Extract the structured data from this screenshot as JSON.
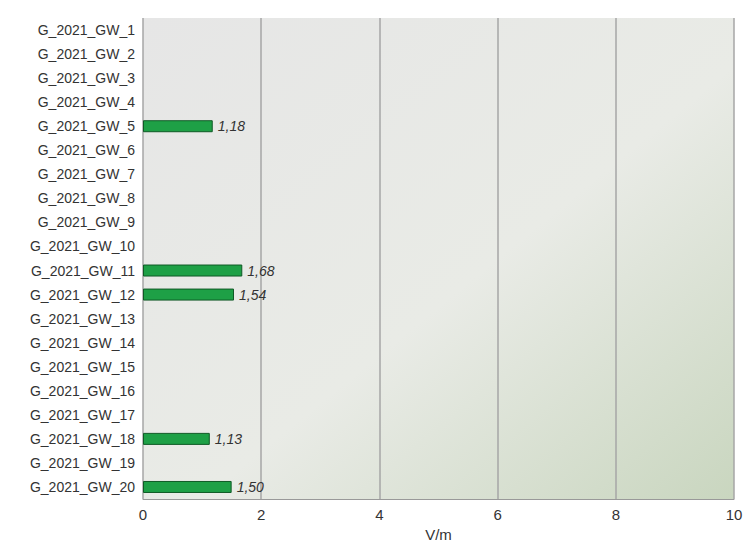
{
  "chart_data": {
    "type": "bar",
    "orientation": "horizontal",
    "categories": [
      "G_2021_GW_1",
      "G_2021_GW_2",
      "G_2021_GW_3",
      "G_2021_GW_4",
      "G_2021_GW_5",
      "G_2021_GW_6",
      "G_2021_GW_7",
      "G_2021_GW_8",
      "G_2021_GW_9",
      "G_2021_GW_10",
      "G_2021_GW_11",
      "G_2021_GW_12",
      "G_2021_GW_13",
      "G_2021_GW_14",
      "G_2021_GW_15",
      "G_2021_GW_16",
      "G_2021_GW_17",
      "G_2021_GW_18",
      "G_2021_GW_19",
      "G_2021_GW_20"
    ],
    "values": [
      null,
      null,
      null,
      null,
      1.18,
      null,
      null,
      null,
      null,
      null,
      1.68,
      1.54,
      null,
      null,
      null,
      null,
      null,
      1.13,
      null,
      1.5
    ],
    "value_labels": [
      null,
      null,
      null,
      null,
      "1,18",
      null,
      null,
      null,
      null,
      null,
      "1,68",
      "1,54",
      null,
      null,
      null,
      null,
      null,
      "1,13",
      null,
      "1,50"
    ],
    "color": "#1ea046",
    "xlabel": "V/m",
    "xlim": [
      0,
      10
    ],
    "xticks": [
      0,
      2,
      4,
      6,
      8,
      10
    ],
    "grid": true,
    "data_labels": true
  }
}
